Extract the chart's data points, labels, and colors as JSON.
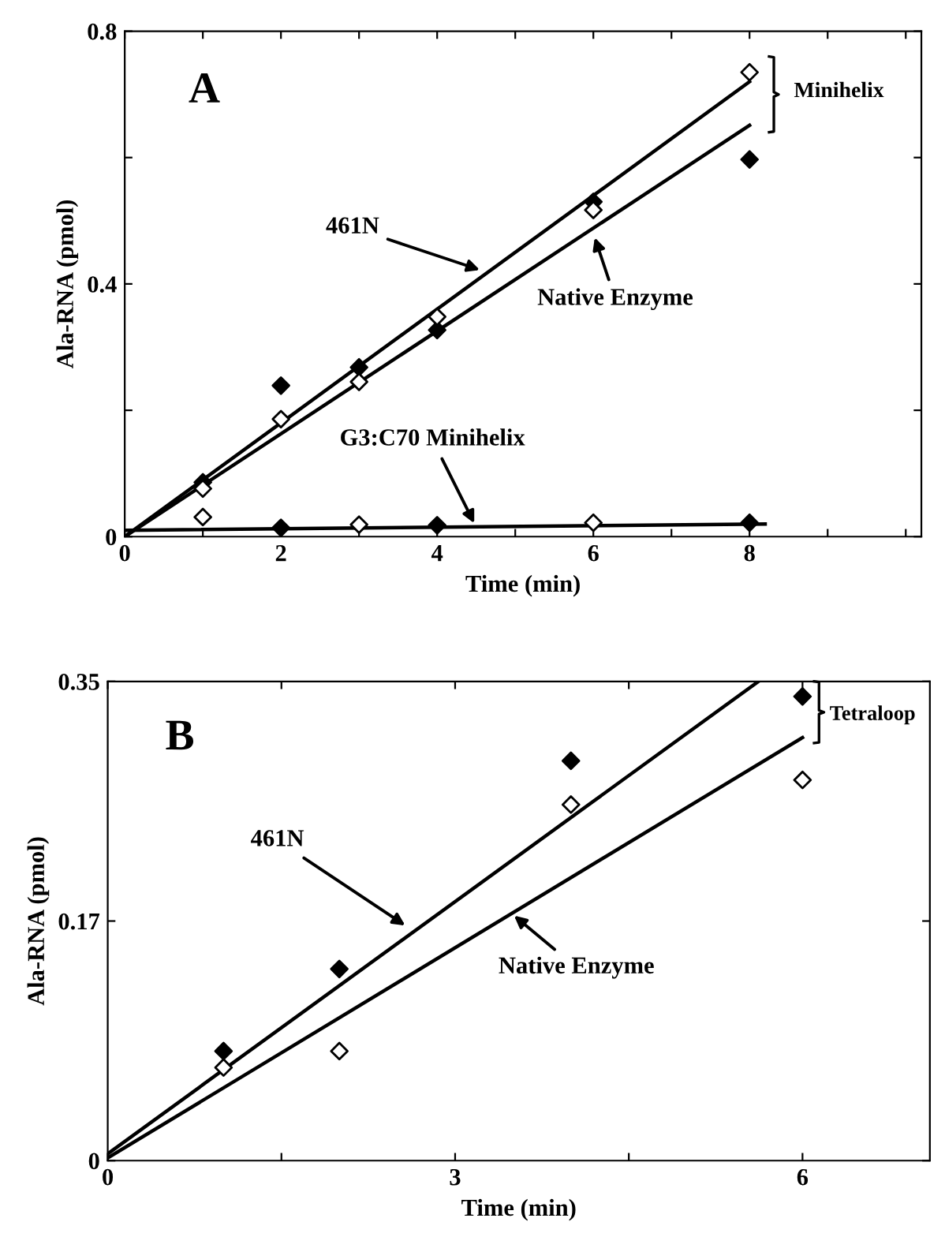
{
  "chart_data": [
    {
      "type": "scatter",
      "xlabel": "Time (min)",
      "ylabel": "Ala-RNA (pmol)",
      "xlim": [
        0,
        10.2
      ],
      "ylim": [
        0,
        0.8
      ],
      "xticks": [
        0,
        {
          "value": 1,
          "label": null
        },
        2,
        {
          "value": 3,
          "label": null
        },
        4,
        {
          "value": 5,
          "label": null
        },
        6,
        {
          "value": 7,
          "label": null
        },
        8,
        {
          "value": 9,
          "label": null
        },
        {
          "value": 10,
          "label": null
        }
      ],
      "yticks": [
        0,
        {
          "value": 0.2,
          "label": null
        },
        0.4,
        {
          "value": 0.6,
          "label": null
        },
        0.8
      ],
      "marker": "diamond",
      "grid": false,
      "legend": false,
      "series": [
        {
          "color": "#000000",
          "x": [
            1,
            2,
            3,
            4,
            6,
            8
          ],
          "values": [
            0.086,
            0.239,
            0.268,
            0.327,
            0.53,
            0.597
          ]
        },
        {
          "color": "#ffffff",
          "x": [
            1,
            2,
            3,
            4,
            6,
            8
          ],
          "values": [
            0.076,
            0.186,
            0.245,
            0.348,
            0.517,
            0.735
          ]
        },
        {
          "color": "#ffffff",
          "x": [
            1,
            3,
            6
          ],
          "values": [
            0.031,
            0.019,
            0.022
          ]
        },
        {
          "color": "#000000",
          "x": [
            2,
            4,
            8
          ],
          "values": [
            0.014,
            0.018,
            0.022
          ]
        },
        {
          "type": "line",
          "color": "#000000",
          "marker": "none",
          "x": [
            0,
            8
          ],
          "values": [
            0,
            0.72
          ]
        },
        {
          "type": "line",
          "color": "#000000",
          "marker": "none",
          "x": [
            0,
            8
          ],
          "values": [
            0,
            0.651
          ]
        },
        {
          "type": "line",
          "color": "#000000",
          "marker": "none",
          "x": [
            0,
            8.2
          ],
          "values": [
            0.01,
            0.02
          ]
        }
      ],
      "annotations": [
        "A",
        {
          "text": "461N",
          "x": 4.6,
          "y": 0.42
        },
        {
          "text": "Native Enzyme",
          "x": 6,
          "y": 0.48
        },
        {
          "text": "G3:C70 Minihelix",
          "x": 4.5,
          "y": 0.015
        },
        "Minihelix"
      ]
    },
    {
      "type": "scatter",
      "xlabel": "Time (min)",
      "ylabel": "Ala-RNA (pmol)",
      "xlim": [
        0,
        7.1
      ],
      "ylim": [
        0,
        0.35
      ],
      "xticks": [
        0,
        {
          "value": 1.5,
          "label": null
        },
        3,
        {
          "value": 4.5,
          "label": null
        },
        6
      ],
      "yticks": [
        0,
        {
          "value": 0.175,
          "label": "0.17"
        },
        0.35
      ],
      "marker": "diamond",
      "grid": false,
      "legend": false,
      "series": [
        {
          "color": "#000000",
          "x": [
            1,
            2,
            4,
            6
          ],
          "values": [
            0.08,
            0.14,
            0.292,
            0.339
          ]
        },
        {
          "color": "#ffffff",
          "x": [
            1,
            2,
            4,
            6
          ],
          "values": [
            0.068,
            0.08,
            0.26,
            0.278
          ]
        },
        {
          "type": "line",
          "color": "#000000",
          "marker": "none",
          "x": [
            0,
            5.62
          ],
          "values": [
            0.005,
            0.35
          ]
        },
        {
          "type": "line",
          "color": "#000000",
          "marker": "none",
          "x": [
            0,
            6
          ],
          "values": [
            0.002,
            0.309
          ]
        }
      ],
      "annotations": [
        "B",
        {
          "text": "461N",
          "x": 2.6,
          "y": 0.17
        },
        {
          "text": "Native Enzyme",
          "x": 3.48,
          "y": 0.181
        },
        "Tetraloop"
      ]
    }
  ]
}
